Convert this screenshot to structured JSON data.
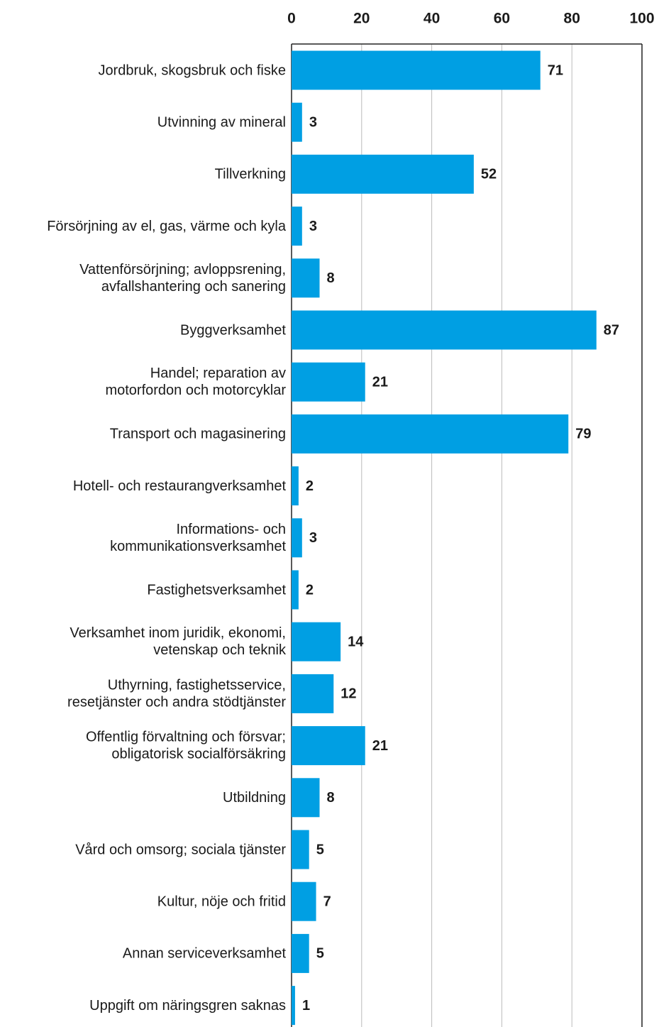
{
  "chart_data": {
    "type": "barh",
    "categories": [
      "Jordbruk, skogsbruk och fiske",
      "Utvinning av mineral",
      "Tillverkning",
      "Försörjning av el, gas, värme och kyla",
      "Vattenförsörjning; avloppsrening,\navfallshantering och sanering",
      "Byggverksamhet",
      "Handel; reparation av\nmotorfordon och motorcyklar",
      "Transport och magasinering",
      "Hotell- och restaurangverksamhet",
      "Informations- och\nkommunikationsverksamhet",
      "Fastighetsverksamhet",
      "Verksamhet inom juridik, ekonomi,\nvetenskap och teknik",
      "Uthyrning, fastighetsservice,\nresetjänster och andra stödtjänster",
      "Offentlig förvaltning och försvar;\nobligatorisk socialförsäkring",
      "Utbildning",
      "Vård och omsorg; sociala tjänster",
      "Kultur, nöje och fritid",
      "Annan serviceverksamhet",
      "Uppgift om näringsgren saknas"
    ],
    "values": [
      71,
      3,
      52,
      3,
      8,
      87,
      21,
      79,
      2,
      3,
      2,
      14,
      12,
      21,
      8,
      5,
      7,
      5,
      1
    ],
    "color": "#009fe3",
    "xlim": [
      0,
      100
    ],
    "xticks": [
      0,
      20,
      40,
      60,
      80,
      100
    ],
    "grid": true
  }
}
